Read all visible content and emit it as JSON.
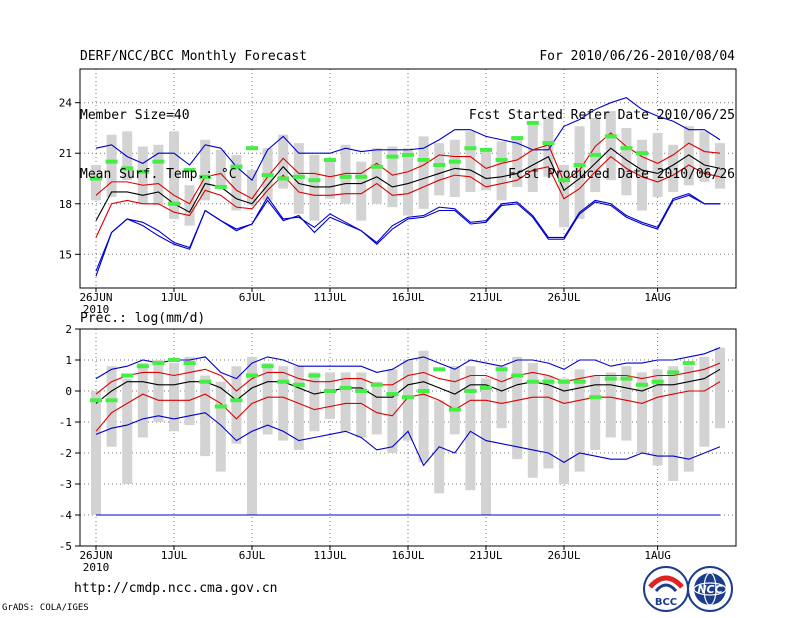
{
  "header": {
    "line1": "DERF/NCC/BCC Monthly Forecast",
    "line2": "Member Size=40",
    "line3": "Mean Surf. Temp.: °C",
    "period": "For 2010/06/26-2010/08/04",
    "refer": "Fcst Started Refer Date 2010/06/25",
    "produced": "Fcst Produced Date 2010/06/26"
  },
  "footer": {
    "url": "http://cmdp.ncc.cma.gov.cn",
    "grads": "GrADS: COLA/IGES"
  },
  "logos": {
    "bcc": "BCC",
    "ncc": "NCC"
  },
  "colors": {
    "box": "#d3d3d3",
    "mean": "#000000",
    "band": "#dd0000",
    "envelope": "#0000cc",
    "marker": "#44ee44",
    "axis": "#000000"
  },
  "chart_data": [
    {
      "type": "line",
      "title": "Mean Surf. Temp.: °C",
      "ylim": [
        13,
        26
      ],
      "yticks": [
        15,
        18,
        21,
        24
      ],
      "xticks": [
        {
          "i": 0,
          "label": "26JUN"
        },
        {
          "i": 5,
          "label": "1JUL"
        },
        {
          "i": 10,
          "label": "6JUL"
        },
        {
          "i": 15,
          "label": "11JUL"
        },
        {
          "i": 20,
          "label": "16JUL"
        },
        {
          "i": 25,
          "label": "21JUL"
        },
        {
          "i": 30,
          "label": "26JUL"
        },
        {
          "i": 36,
          "label": "1AUG"
        }
      ],
      "x_year": "2010",
      "n_days": 40,
      "series": [
        {
          "name": "max",
          "values": [
            14.0,
            16.3,
            17.1,
            16.9,
            16.4,
            15.7,
            15.4,
            17.6,
            17.0,
            16.5,
            16.8,
            18.4,
            17.1,
            17.2,
            16.6,
            17.4,
            16.9,
            16.4,
            15.7,
            16.7,
            17.2,
            17.3,
            17.8,
            17.7,
            16.9,
            17.0,
            18.0,
            18.1,
            17.3,
            16.0,
            16.0,
            17.5,
            18.2,
            18.0,
            17.3,
            16.9,
            16.6,
            18.3,
            18.6,
            18.0,
            18.0
          ]
        },
        {
          "name": "p90",
          "values": [
            21.3,
            21.5,
            20.8,
            20.4,
            21.0,
            21.0,
            20.3,
            21.5,
            21.3,
            20.2,
            19.4,
            21.2,
            22.0,
            21.0,
            21.0,
            21.0,
            21.3,
            21.1,
            21.2,
            21.2,
            21.2,
            21.3,
            21.8,
            22.4,
            22.4,
            22.0,
            21.8,
            21.6,
            21.2,
            21.2,
            22.6,
            23.0,
            23.6,
            24.0,
            24.3,
            23.6,
            23.2,
            22.9,
            22.4,
            22.4,
            21.8
          ]
        },
        {
          "name": "p75",
          "values": [
            18.5,
            19.3,
            19.3,
            19.1,
            19.2,
            18.5,
            18.0,
            19.6,
            19.8,
            18.8,
            18.3,
            19.6,
            20.7,
            19.8,
            19.8,
            19.6,
            19.8,
            19.8,
            20.4,
            19.7,
            19.9,
            20.3,
            20.9,
            20.8,
            20.8,
            20.1,
            20.4,
            20.6,
            21.2,
            21.5,
            19.3,
            20.0,
            21.4,
            22.2,
            21.4,
            20.8,
            20.4,
            20.9,
            21.6,
            21.1,
            21.0
          ]
        },
        {
          "name": "mean",
          "values": [
            17.0,
            18.7,
            18.7,
            18.5,
            18.7,
            18.0,
            17.5,
            19.2,
            19.0,
            18.3,
            18.0,
            19.1,
            20.2,
            19.2,
            19.0,
            19.0,
            19.2,
            19.2,
            19.6,
            19.0,
            19.2,
            19.5,
            19.8,
            20.1,
            20.0,
            19.5,
            19.6,
            19.8,
            20.3,
            20.8,
            18.8,
            19.5,
            20.4,
            21.3,
            20.6,
            20.0,
            19.8,
            20.3,
            20.9,
            20.3,
            20.1
          ]
        },
        {
          "name": "p25",
          "values": [
            16.0,
            18.0,
            18.2,
            18.0,
            18.0,
            17.5,
            17.3,
            18.8,
            18.5,
            17.8,
            17.7,
            18.8,
            19.7,
            18.7,
            18.5,
            18.5,
            18.6,
            18.6,
            19.2,
            18.5,
            18.6,
            19.0,
            19.4,
            19.7,
            19.6,
            19.0,
            19.2,
            19.4,
            20.0,
            20.2,
            18.3,
            18.9,
            19.9,
            20.8,
            20.1,
            19.6,
            19.3,
            19.7,
            20.3,
            19.8,
            19.6
          ]
        },
        {
          "name": "min",
          "values": [
            13.7,
            16.3,
            17.1,
            16.7,
            16.1,
            15.6,
            15.3,
            17.6,
            17.0,
            16.4,
            16.8,
            18.2,
            17.0,
            17.3,
            16.3,
            17.2,
            16.8,
            16.4,
            15.6,
            16.5,
            17.1,
            17.2,
            17.6,
            17.6,
            16.8,
            16.9,
            17.9,
            18.0,
            17.2,
            15.9,
            15.9,
            17.4,
            18.1,
            17.9,
            17.2,
            16.8,
            16.5,
            18.2,
            18.5,
            18.0,
            18.0
          ]
        }
      ],
      "boxes": [
        [
          18.2,
          20.3
        ],
        [
          18.4,
          22.1
        ],
        [
          19.4,
          22.3
        ],
        [
          18.0,
          21.4
        ],
        [
          17.9,
          21.5
        ],
        [
          17.1,
          22.3
        ],
        [
          16.7,
          19.1
        ],
        [
          18.2,
          21.8
        ],
        [
          18.9,
          21.2
        ],
        [
          17.6,
          20.9
        ],
        [
          17.9,
          20.0
        ],
        [
          18.2,
          21.3
        ],
        [
          18.9,
          22.1
        ],
        [
          17.4,
          21.6
        ],
        [
          17.0,
          20.9
        ],
        [
          18.3,
          20.5
        ],
        [
          18.0,
          21.5
        ],
        [
          17.0,
          20.5
        ],
        [
          18.0,
          21.3
        ],
        [
          17.8,
          21.4
        ],
        [
          17.3,
          21.3
        ],
        [
          17.7,
          22.0
        ],
        [
          18.5,
          21.6
        ],
        [
          18.4,
          21.8
        ],
        [
          18.7,
          22.3
        ],
        [
          18.8,
          21.2
        ],
        [
          18.2,
          21.7
        ],
        [
          19.0,
          21.9
        ],
        [
          18.7,
          22.8
        ],
        [
          19.6,
          23.2
        ],
        [
          16.6,
          20.3
        ],
        [
          17.1,
          22.6
        ],
        [
          18.7,
          23.1
        ],
        [
          19.4,
          23.5
        ],
        [
          18.5,
          22.5
        ],
        [
          17.6,
          21.8
        ],
        [
          18.4,
          22.2
        ],
        [
          18.7,
          21.5
        ],
        [
          19.1,
          22.6
        ],
        [
          19.3,
          22.3
        ],
        [
          18.9,
          21.6
        ]
      ],
      "markers": [
        19.5,
        20.5,
        20.1,
        19.9,
        20.5,
        18.0,
        20.0,
        19.6,
        19.0,
        20.2,
        21.3,
        19.7,
        19.5,
        19.6,
        19.4,
        20.6,
        19.6,
        19.6,
        20.2,
        20.8,
        20.9,
        20.6,
        20.3,
        20.5,
        21.3,
        21.2,
        20.6,
        21.9,
        22.8,
        21.6,
        19.4,
        20.3,
        20.9,
        22.0,
        21.3,
        21.0
      ]
    },
    {
      "type": "line",
      "title": "Prec.: log(mm/d)",
      "ylim": [
        -5,
        2
      ],
      "yticks": [
        -5,
        -4,
        -3,
        -2,
        -1,
        0,
        1,
        2
      ],
      "xticks": [
        {
          "i": 0,
          "label": "26JUN"
        },
        {
          "i": 5,
          "label": "1JUL"
        },
        {
          "i": 10,
          "label": "6JUL"
        },
        {
          "i": 15,
          "label": "11JUL"
        },
        {
          "i": 20,
          "label": "16JUL"
        },
        {
          "i": 25,
          "label": "21JUL"
        },
        {
          "i": 30,
          "label": "26JUL"
        },
        {
          "i": 36,
          "label": "1AUG"
        }
      ],
      "x_year": "2010",
      "n_days": 40,
      "series": [
        {
          "name": "max",
          "values": [
            0.4,
            0.7,
            0.8,
            1.0,
            0.9,
            1.0,
            1.0,
            1.1,
            0.6,
            0.4,
            0.9,
            1.1,
            1.0,
            0.8,
            0.8,
            0.8,
            0.8,
            0.8,
            0.6,
            0.7,
            1.0,
            1.1,
            0.9,
            0.7,
            1.0,
            0.9,
            0.8,
            1.0,
            1.0,
            0.9,
            0.7,
            1.0,
            1.0,
            0.8,
            0.9,
            0.9,
            1.0,
            1.0,
            1.1,
            1.2,
            1.4
          ]
        },
        {
          "name": "p75",
          "values": [
            -0.1,
            0.3,
            0.5,
            0.6,
            0.6,
            0.5,
            0.6,
            0.7,
            0.5,
            0.0,
            0.4,
            0.6,
            0.6,
            0.4,
            0.3,
            0.3,
            0.4,
            0.4,
            0.2,
            0.2,
            0.5,
            0.6,
            0.4,
            0.3,
            0.5,
            0.5,
            0.3,
            0.5,
            0.6,
            0.5,
            0.3,
            0.4,
            0.5,
            0.5,
            0.5,
            0.4,
            0.5,
            0.5,
            0.6,
            0.7,
            0.9
          ]
        },
        {
          "name": "mean",
          "values": [
            -0.4,
            0.0,
            0.3,
            0.3,
            0.2,
            0.2,
            0.3,
            0.3,
            0.1,
            -0.3,
            0.1,
            0.3,
            0.3,
            0.1,
            -0.1,
            0.0,
            0.1,
            0.1,
            -0.2,
            -0.2,
            0.2,
            0.3,
            0.1,
            -0.1,
            0.2,
            0.2,
            0.0,
            0.2,
            0.3,
            0.2,
            0.0,
            0.1,
            0.2,
            0.2,
            0.1,
            0.0,
            0.2,
            0.2,
            0.3,
            0.4,
            0.7
          ]
        },
        {
          "name": "p25",
          "values": [
            -1.3,
            -0.7,
            -0.4,
            -0.1,
            -0.3,
            -0.3,
            -0.3,
            -0.1,
            -0.4,
            -0.9,
            -0.4,
            -0.2,
            -0.2,
            -0.4,
            -0.6,
            -0.5,
            -0.4,
            -0.4,
            -0.7,
            -0.8,
            -0.2,
            -0.1,
            -0.3,
            -0.6,
            -0.3,
            -0.3,
            -0.4,
            -0.3,
            -0.2,
            -0.2,
            -0.4,
            -0.3,
            -0.2,
            -0.2,
            -0.3,
            -0.4,
            -0.2,
            -0.1,
            0.0,
            0.0,
            0.3
          ]
        },
        {
          "name": "min",
          "values": [
            -1.4,
            -1.2,
            -1.1,
            -0.9,
            -0.8,
            -0.9,
            -0.8,
            -0.7,
            -1.1,
            -1.6,
            -1.3,
            -1.1,
            -1.3,
            -1.6,
            -1.5,
            -1.4,
            -1.3,
            -1.5,
            -1.9,
            -1.8,
            -1.3,
            -2.4,
            -1.8,
            -2.0,
            -1.3,
            -1.6,
            -1.7,
            -1.8,
            -1.9,
            -2.0,
            -2.3,
            -2.0,
            -2.1,
            -2.2,
            -2.2,
            -2.0,
            -2.1,
            -2.1,
            -2.2,
            -2.0,
            -1.8
          ]
        }
      ],
      "boxes": [
        [
          -4.0,
          0.0
        ],
        [
          -1.8,
          0.8
        ],
        [
          -3.0,
          0.4
        ],
        [
          -1.5,
          0.9
        ],
        [
          -1.0,
          1.0
        ],
        [
          -1.3,
          0.9
        ],
        [
          -1.1,
          1.1
        ],
        [
          -2.1,
          0.5
        ],
        [
          -2.6,
          0.3
        ],
        [
          -1.7,
          0.8
        ],
        [
          -4.0,
          1.1
        ],
        [
          -1.4,
          0.9
        ],
        [
          -1.6,
          0.8
        ],
        [
          -1.9,
          0.8
        ],
        [
          -1.3,
          0.6
        ],
        [
          -0.9,
          0.6
        ],
        [
          -1.3,
          0.6
        ],
        [
          -1.5,
          0.6
        ],
        [
          -1.4,
          0.3
        ],
        [
          -2.0,
          0.7
        ],
        [
          -1.6,
          1.0
        ],
        [
          -2.3,
          1.3
        ],
        [
          -3.3,
          -0.3
        ],
        [
          -1.4,
          0.8
        ],
        [
          -3.2,
          0.8
        ],
        [
          -4.0,
          0.4
        ],
        [
          -1.2,
          0.8
        ],
        [
          -2.2,
          1.1
        ],
        [
          -2.8,
          0.9
        ],
        [
          -2.5,
          0.5
        ],
        [
          -3.0,
          0.4
        ],
        [
          -2.6,
          0.7
        ],
        [
          -1.9,
          0.5
        ],
        [
          -1.5,
          0.6
        ],
        [
          -1.6,
          0.8
        ],
        [
          -2.0,
          0.6
        ],
        [
          -2.4,
          0.7
        ],
        [
          -2.9,
          0.8
        ],
        [
          -2.6,
          0.8
        ],
        [
          -1.8,
          1.1
        ],
        [
          -1.2,
          1.4
        ]
      ],
      "markers": [
        -0.3,
        -0.3,
        0.5,
        0.8,
        0.9,
        1.0,
        0.9,
        0.3,
        -0.5,
        -0.3,
        0.5,
        0.8,
        0.3,
        0.2,
        0.5,
        0.0,
        0.1,
        0.0,
        0.2,
        -0.1,
        -0.2,
        0.0,
        0.7,
        -0.6,
        0.0,
        0.1,
        0.7,
        0.5,
        0.3,
        0.3,
        0.3,
        0.3,
        -0.2,
        0.4,
        0.4,
        0.2,
        0.3,
        0.6,
        0.9
      ]
    }
  ]
}
